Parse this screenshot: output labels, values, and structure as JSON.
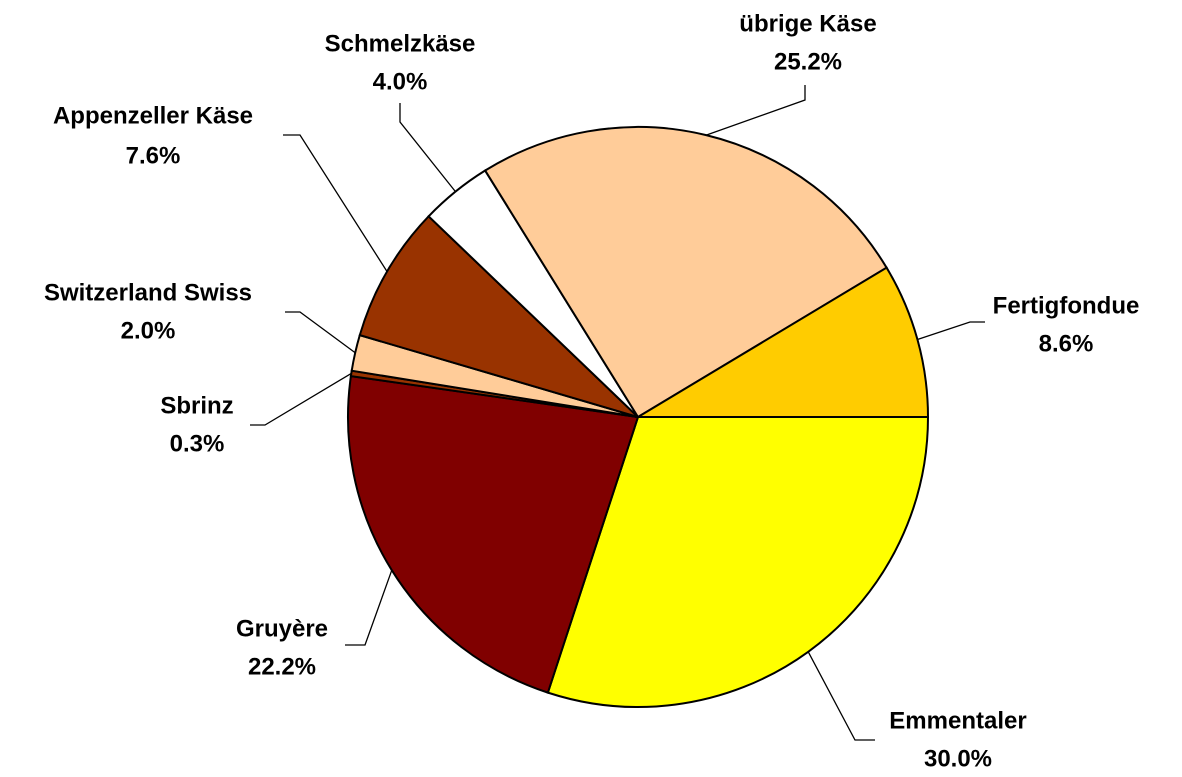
{
  "chart_data": {
    "type": "pie",
    "categories": [
      "Emmentaler",
      "Gruyère",
      "Sbrinz",
      "Switzerland Swiss",
      "Appenzeller Käse",
      "Schmelzkäse",
      "übrige Käse",
      "Fertigfondue"
    ],
    "values": [
      30.0,
      22.2,
      0.3,
      2.0,
      7.6,
      4.0,
      25.2,
      8.6
    ],
    "value_labels": [
      "30.0%",
      "22.2%",
      "0.3%",
      "2.0%",
      "7.6%",
      "4.0%",
      "25.2%",
      "8.6%"
    ],
    "colors": [
      "#ffff00",
      "#800000",
      "#993300",
      "#ffcc99",
      "#993300",
      "#ffffff",
      "#ffcc99",
      "#ffcc00"
    ]
  }
}
